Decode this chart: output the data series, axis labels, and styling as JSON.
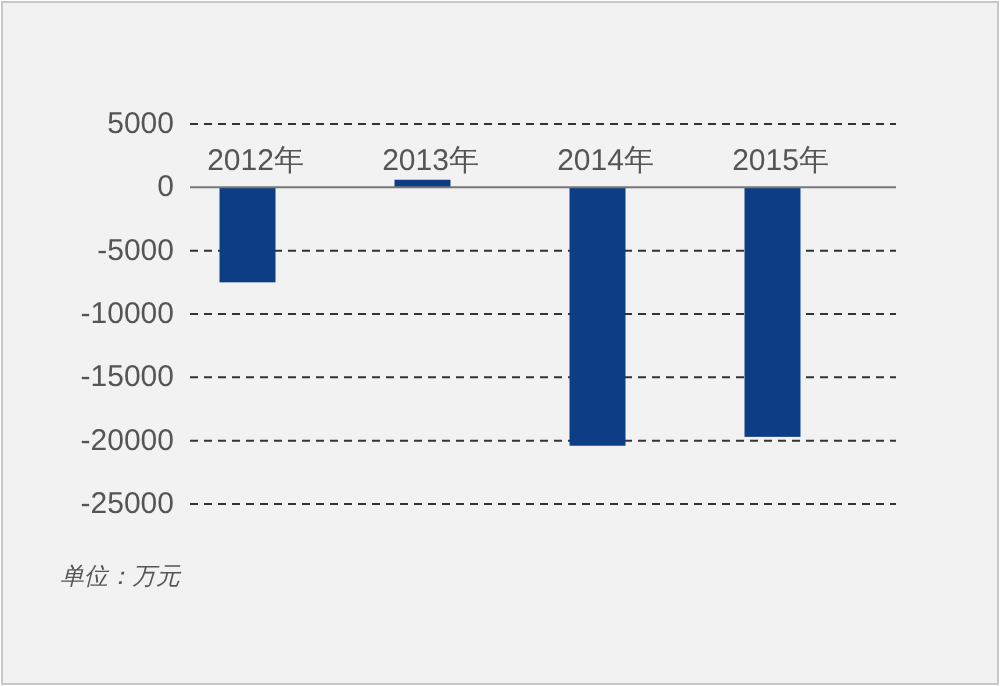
{
  "chart_data": {
    "type": "bar",
    "categories": [
      "2012年",
      "2013年",
      "2014年",
      "2015年"
    ],
    "values": [
      -7500,
      600,
      -20400,
      -19700
    ],
    "color": "#0d3e85",
    "ylim": [
      -25000,
      5000
    ],
    "yticks": [
      5000,
      0,
      -5000,
      -10000,
      -15000,
      -20000,
      -25000
    ],
    "grid": "y",
    "annotations": [
      "单位：万元"
    ]
  }
}
